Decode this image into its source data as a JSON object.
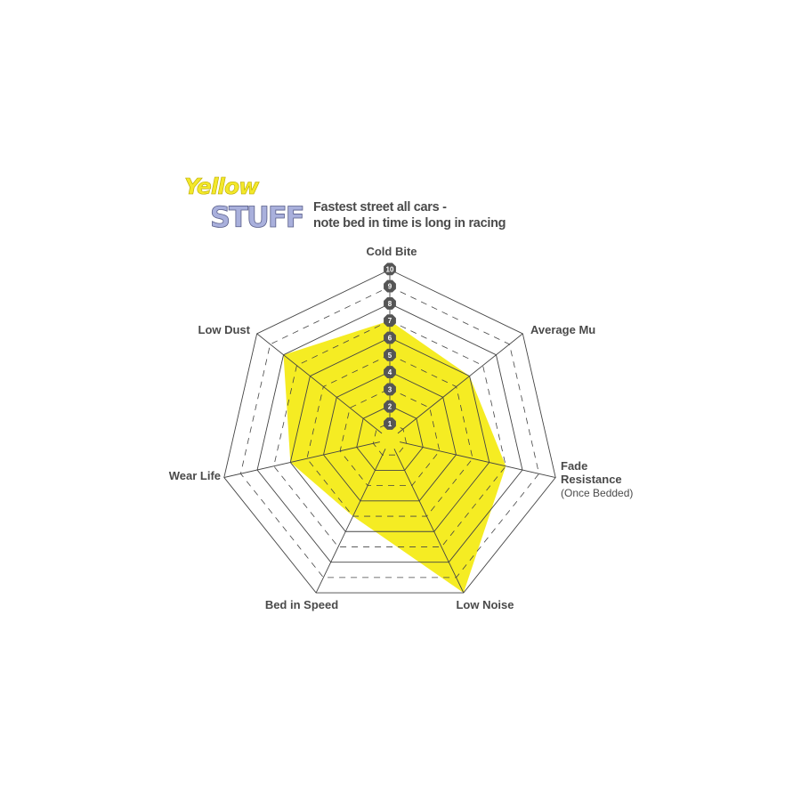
{
  "logo": {
    "line1": "Yellow",
    "line2": "STUFF",
    "colors": {
      "yellow": "#f3e82a",
      "stuff": "#a9b0dc"
    }
  },
  "subtitle": {
    "line1": "Fastest street all cars -",
    "line2": "note bed in time is long in racing"
  },
  "chart_data": {
    "type": "radar",
    "axes": [
      "Cold Bite",
      "Average Mu",
      "Fade Resistance",
      "Low Noise",
      "Bed in Speed",
      "Wear Life",
      "Low Dust"
    ],
    "axis_sublabels": {
      "Fade Resistance": "(Once Bedded)"
    },
    "values": [
      7,
      6,
      7,
      10,
      5,
      6,
      8
    ],
    "range": [
      0,
      10
    ],
    "scale_labels": [
      "1",
      "2",
      "3",
      "4",
      "5",
      "6",
      "7",
      "8",
      "9",
      "10"
    ],
    "fill_color": "#f5ec23",
    "grid_color": "#444444",
    "badge_color": "#555555"
  }
}
